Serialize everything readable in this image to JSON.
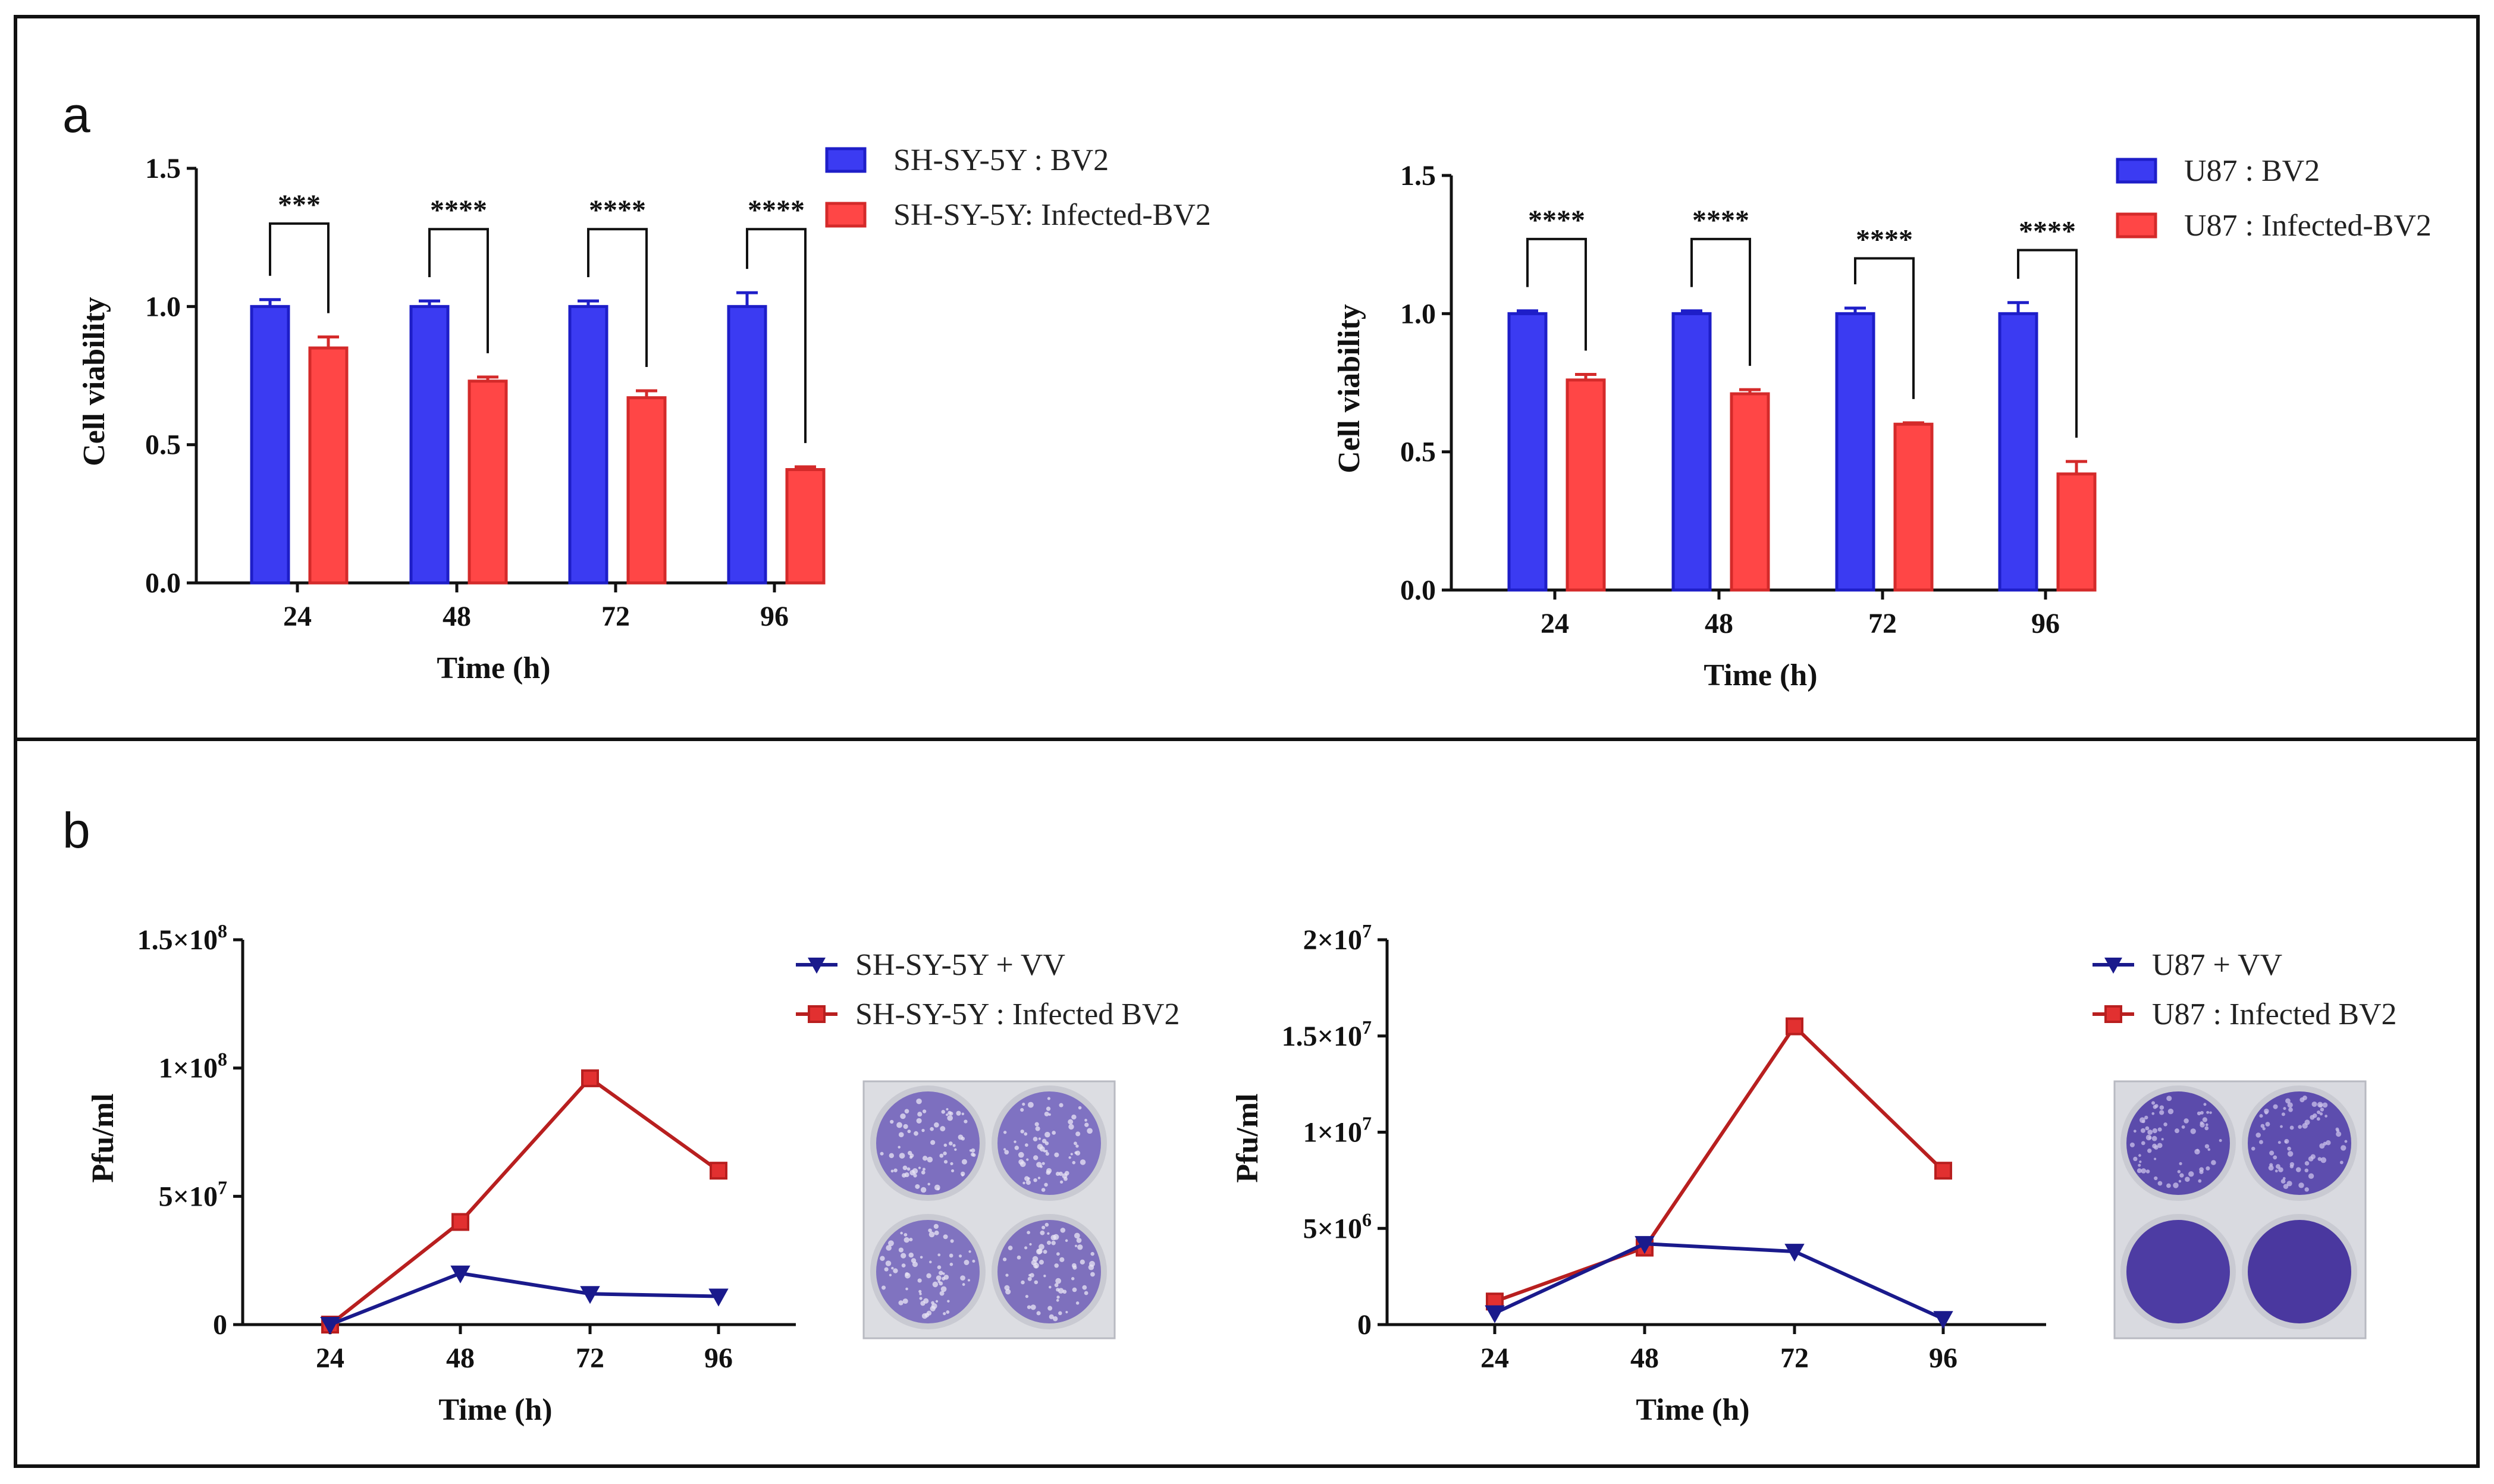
{
  "panels": {
    "a": "a",
    "b": "b"
  },
  "colors": {
    "blue": "#3b3bf2",
    "blue_dark": "#1e1ec8",
    "red": "#ff4646",
    "red_dark": "#d42a2a",
    "line_blue": "#1a1a8c",
    "line_red": "#b81f1f",
    "plate": "#5a4aa8"
  },
  "chart_data": [
    {
      "id": "a-left",
      "type": "bar",
      "title": "",
      "xlabel": "Time (h)",
      "ylabel": "Cell viability",
      "ylim": [
        0,
        1.5
      ],
      "yticks": [
        0.0,
        0.5,
        1.0,
        1.5
      ],
      "ytick_labels": [
        "0.0",
        "0.5",
        "1.0",
        "1.5"
      ],
      "categories": [
        "24",
        "48",
        "72",
        "96"
      ],
      "series": [
        {
          "name": "SH-SY-5Y : BV2",
          "values": [
            1.0,
            1.0,
            1.0,
            1.0
          ],
          "errors": [
            0.025,
            0.02,
            0.02,
            0.05
          ],
          "color": "blue"
        },
        {
          "name": "SH-SY-5Y: Infected-BV2",
          "values": [
            0.85,
            0.73,
            0.67,
            0.41
          ],
          "errors": [
            0.04,
            0.015,
            0.025,
            0.01
          ],
          "color": "red"
        }
      ],
      "significance": [
        "***",
        "****",
        "****",
        "****"
      ],
      "bracket_top": [
        1.3,
        1.28,
        1.28,
        1.28
      ]
    },
    {
      "id": "a-right",
      "type": "bar",
      "title": "",
      "xlabel": "Time (h)",
      "ylabel": "Cell viability",
      "ylim": [
        0,
        1.5
      ],
      "yticks": [
        0.0,
        0.5,
        1.0,
        1.5
      ],
      "ytick_labels": [
        "0.0",
        "0.5",
        "1.0",
        "1.5"
      ],
      "categories": [
        "24",
        "48",
        "72",
        "96"
      ],
      "series": [
        {
          "name": "U87 : BV2",
          "values": [
            1.0,
            1.0,
            1.0,
            1.0
          ],
          "errors": [
            0.01,
            0.01,
            0.02,
            0.04
          ],
          "color": "blue"
        },
        {
          "name": "U87 : Infected-BV2",
          "values": [
            0.76,
            0.71,
            0.6,
            0.42
          ],
          "errors": [
            0.02,
            0.015,
            0.005,
            0.045
          ],
          "color": "red"
        }
      ],
      "significance": [
        "****",
        "****",
        "****",
        "****"
      ],
      "bracket_top": [
        1.27,
        1.27,
        1.2,
        1.23
      ]
    },
    {
      "id": "b-left",
      "type": "line",
      "title": "",
      "xlabel": "Time (h)",
      "ylabel": "Pfu/ml",
      "ylim": [
        0,
        150000000
      ],
      "yticks": [
        0,
        50000000,
        100000000,
        150000000
      ],
      "ytick_labels": [
        {
          "mant": "0",
          "exp": ""
        },
        {
          "mant": "5×10",
          "exp": "7"
        },
        {
          "mant": "1×10",
          "exp": "8"
        },
        {
          "mant": "1.5×10",
          "exp": "8"
        }
      ],
      "x": [
        "24",
        "48",
        "72",
        "96"
      ],
      "series": [
        {
          "name": "SH-SY-5Y + VV",
          "values": [
            0,
            20000000,
            12000000,
            11000000
          ],
          "marker": "triangle",
          "color": "line_blue"
        },
        {
          "name": "SH-SY-5Y : Infected BV2",
          "values": [
            0,
            40000000,
            96000000,
            60000000
          ],
          "marker": "square",
          "color": "line_red"
        }
      ]
    },
    {
      "id": "b-right",
      "type": "line",
      "title": "",
      "xlabel": "Time (h)",
      "ylabel": "Pfu/ml",
      "ylim": [
        0,
        20000000
      ],
      "yticks": [
        0,
        5000000,
        10000000,
        15000000,
        20000000
      ],
      "ytick_labels": [
        {
          "mant": "0",
          "exp": ""
        },
        {
          "mant": "5×10",
          "exp": "6"
        },
        {
          "mant": "1×10",
          "exp": "7"
        },
        {
          "mant": "1.5×10",
          "exp": "7"
        },
        {
          "mant": "2×10",
          "exp": "7"
        }
      ],
      "x": [
        "24",
        "48",
        "72",
        "96"
      ],
      "series": [
        {
          "name": "U87 + VV",
          "values": [
            600000,
            4200000,
            3800000,
            300000
          ],
          "marker": "triangle",
          "color": "line_blue"
        },
        {
          "name": "U87 : Infected BV2",
          "values": [
            1200000,
            4000000,
            15500000,
            8000000
          ],
          "marker": "square",
          "color": "line_red"
        }
      ]
    }
  ]
}
